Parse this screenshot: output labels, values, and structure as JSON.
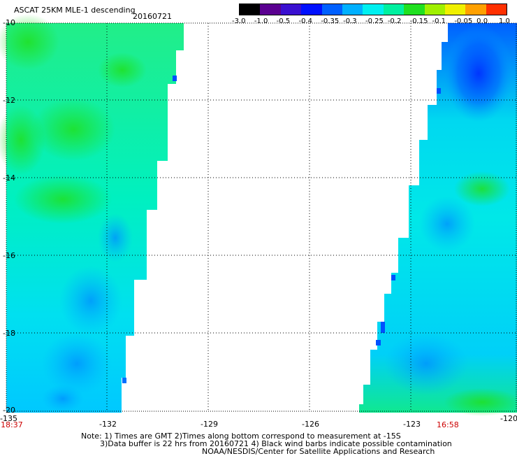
{
  "header": {
    "title": "ASCAT 25KM MLE-1 descending",
    "date": "20160721"
  },
  "colorbar": {
    "colors": [
      "#000000",
      "#5a0090",
      "#3a10d0",
      "#0010ff",
      "#0060ff",
      "#00b0ff",
      "#00f0f0",
      "#00f0a0",
      "#20e020",
      "#a0f000",
      "#f0f000",
      "#ffa000",
      "#ff3000"
    ],
    "tick_labels": [
      "-3.0",
      "-1.0",
      "-0.5",
      "-0.4",
      "-0.35",
      "-0.3",
      "-0.25",
      "-0.2",
      "-0.15",
      "-0.1",
      "-0.05",
      "0.0",
      "1.0"
    ]
  },
  "map": {
    "lon_labels": [
      "-135",
      "-132",
      "-129",
      "-126",
      "-123",
      "-120"
    ],
    "lat_labels": [
      "-10",
      "-12",
      "-14",
      "-16",
      "-18",
      "-20"
    ],
    "times": [
      "18:37",
      "16:58"
    ]
  },
  "footer": {
    "line1": "Note: 1) Times are GMT 2)Times along bottom correspond to measurement at -15S",
    "line2": "3)Data buffer is 22 hrs from 20160721 4) Black wind barbs indicate possible contamination",
    "line3": "NOAA/NESDIS/Center for Satellite Applications and Research"
  }
}
